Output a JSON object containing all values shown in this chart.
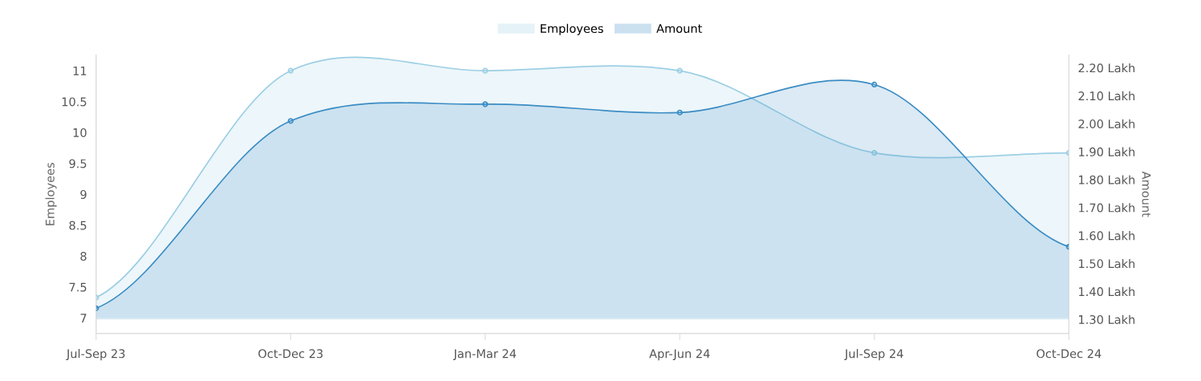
{
  "chart_data": {
    "type": "area",
    "categories": [
      "Jul-Sep 23",
      "Oct-Dec 23",
      "Jan-Mar 24",
      "Apr-Jun 24",
      "Jul-Sep 24",
      "Oct-Dec 24"
    ],
    "ylabel": "Employees",
    "y2label": "Amount",
    "series": [
      {
        "name": "Employees",
        "color": "#9ccfe4",
        "values": [
          7.33,
          11,
          11,
          11,
          9.67,
          9.67
        ]
      },
      {
        "name": "Amount",
        "color": "#3a8cc4",
        "axis": "y2",
        "values": [
          1.34,
          2.01,
          2.07,
          2.04,
          2.14,
          1.56
        ]
      }
    ],
    "ylim": [
      6.75,
      11.25
    ],
    "yticks": [
      7,
      7.5,
      8,
      8.5,
      9,
      9.5,
      10,
      10.5,
      11
    ],
    "y2lim": [
      1.25,
      2.245
    ],
    "y2ticks": [
      {
        "value": 1.3,
        "label": "1.30 Lakh"
      },
      {
        "value": 1.4,
        "label": "1.40 Lakh"
      },
      {
        "value": 1.5,
        "label": "1.50 Lakh"
      },
      {
        "value": 1.6,
        "label": "1.60 Lakh"
      },
      {
        "value": 1.7,
        "label": "1.70 Lakh"
      },
      {
        "value": 1.8,
        "label": "1.80 Lakh"
      },
      {
        "value": 1.9,
        "label": "1.90 Lakh"
      },
      {
        "value": 2.0,
        "label": "2.00 Lakh"
      },
      {
        "value": 2.1,
        "label": "2.10 Lakh"
      },
      {
        "value": 2.2,
        "label": "2.20 Lakh"
      }
    ],
    "legend": "top",
    "grid": false,
    "marker": "circle"
  }
}
